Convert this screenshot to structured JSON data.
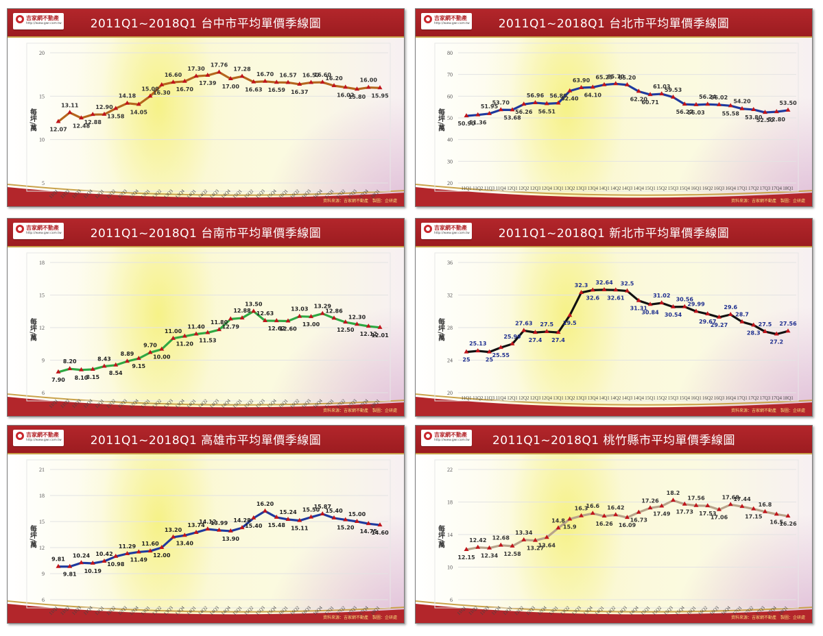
{
  "logo": {
    "name": "吉家網不動產",
    "url": "http://www.gwr.com.tw",
    "sub": "GWR"
  },
  "footer": "資料來源：吉家網不動產　製圖：企研處",
  "quarters": [
    "11Q1",
    "11Q2",
    "11Q3",
    "11Q4",
    "12Q1",
    "12Q2",
    "12Q3",
    "12Q4",
    "13Q1",
    "13Q2",
    "13Q3",
    "13Q4",
    "14Q1",
    "14Q2",
    "14Q3",
    "14Q4",
    "15Q1",
    "15Q2",
    "15Q3",
    "15Q4",
    "16Q1",
    "16Q2",
    "16Q3",
    "16Q4",
    "17Q1",
    "17Q2",
    "17Q3",
    "17Q4",
    "18Q1"
  ],
  "chart_data": [
    {
      "type": "line",
      "title": "2011Q1~2018Q1  台中市平均單價季線圖",
      "xlabel": "",
      "ylabel": "每坪/萬",
      "ylim": [
        5,
        20
      ],
      "yticks": [
        5,
        10,
        15,
        20
      ],
      "grid": true,
      "line_color": "#b5651d",
      "label_color": "#333333",
      "xtick_rotated": true,
      "series": [
        {
          "name": "台中市",
          "values": [
            12.07,
            13.11,
            12.48,
            12.88,
            12.9,
            13.58,
            14.18,
            14.05,
            15.0,
            16.3,
            16.6,
            16.7,
            17.3,
            17.39,
            17.76,
            17.0,
            17.28,
            16.63,
            16.7,
            16.59,
            16.57,
            16.37,
            16.57,
            16.6,
            16.2,
            16.02,
            15.8,
            16.0,
            15.95
          ]
        }
      ]
    },
    {
      "type": "line",
      "title": "2011Q1~2018Q1  台北市平均單價季線圖",
      "xlabel": "",
      "ylabel": "每坪/萬",
      "ylim": [
        20,
        80
      ],
      "yticks": [
        20,
        30,
        40,
        50,
        60,
        70,
        80
      ],
      "grid": true,
      "line_color": "#1f3a9e",
      "label_color": "#333333",
      "xtick_rotated": false,
      "series": [
        {
          "name": "台北市",
          "values": [
            50.9,
            51.36,
            51.95,
            53.7,
            53.68,
            56.26,
            56.96,
            56.51,
            56.8,
            62.4,
            63.9,
            64.1,
            65.25,
            65.7,
            65.2,
            62.2,
            60.71,
            61.03,
            59.53,
            56.27,
            56.03,
            56.24,
            56.02,
            55.58,
            54.2,
            53.8,
            52.5,
            52.8,
            53.5
          ]
        }
      ]
    },
    {
      "type": "line",
      "title": "2011Q1~2018Q1  台南市平均單價季線圖",
      "xlabel": "",
      "ylabel": "每坪/萬",
      "ylim": [
        6,
        18
      ],
      "yticks": [
        6,
        9,
        12,
        15,
        18
      ],
      "grid": true,
      "line_color": "#2fa843",
      "label_color": "#222222",
      "xtick_rotated": true,
      "series": [
        {
          "name": "台南市",
          "values": [
            7.9,
            8.2,
            8.1,
            8.15,
            8.43,
            8.54,
            8.89,
            9.15,
            9.7,
            10.0,
            11.0,
            11.2,
            11.4,
            11.53,
            11.8,
            12.79,
            12.88,
            13.5,
            12.63,
            12.62,
            12.6,
            13.03,
            13.0,
            13.29,
            12.86,
            12.5,
            12.3,
            12.12,
            12.01
          ]
        }
      ]
    },
    {
      "type": "line",
      "title": "2011Q1~2018Q1  新北市平均單價季線圖",
      "xlabel": "",
      "ylabel": "每坪/萬",
      "ylim": [
        20,
        36
      ],
      "yticks": [
        20,
        24,
        28,
        32,
        36
      ],
      "grid": true,
      "line_color": "#111111",
      "label_color": "#1f2f8f",
      "xtick_rotated": false,
      "series": [
        {
          "name": "新北市",
          "values": [
            25,
            25.13,
            25,
            25.55,
            25.99,
            27.63,
            27.4,
            27.5,
            27.4,
            29.5,
            32.3,
            32.6,
            32.64,
            32.61,
            32.5,
            31.31,
            30.84,
            31.02,
            30.54,
            30.56,
            29.99,
            29.67,
            29.27,
            29.6,
            28.7,
            28.3,
            27.5,
            27.2,
            27.56
          ]
        }
      ]
    },
    {
      "type": "line",
      "title": "2011Q1~2018Q1  高雄市平均單價季線圖",
      "xlabel": "",
      "ylabel": "每坪/萬",
      "ylim": [
        6,
        21
      ],
      "yticks": [
        6,
        9,
        12,
        15,
        18,
        21
      ],
      "grid": true,
      "line_color": "#1f3a9e",
      "label_color": "#222222",
      "xtick_rotated": true,
      "series": [
        {
          "name": "高雄市",
          "values": [
            9.81,
            9.81,
            10.24,
            10.19,
            10.42,
            10.98,
            11.29,
            11.49,
            11.6,
            12.0,
            13.2,
            13.4,
            13.74,
            14.12,
            13.99,
            13.9,
            14.28,
            15.4,
            16.2,
            15.48,
            15.24,
            15.11,
            15.5,
            15.87,
            15.4,
            15.2,
            15.0,
            14.75,
            14.6
          ]
        }
      ]
    },
    {
      "type": "line",
      "title": "2011Q1~2018Q1  桃竹縣市平均單價季線圖",
      "xlabel": "",
      "ylabel": "每坪/萬",
      "ylim": [
        6,
        22
      ],
      "yticks": [
        6,
        10,
        14,
        18,
        22
      ],
      "grid": true,
      "line_color": "#b8a38a",
      "label_color": "#333333",
      "xtick_rotated": true,
      "series": [
        {
          "name": "桃竹縣市",
          "values": [
            12.15,
            12.42,
            12.34,
            12.68,
            12.58,
            13.34,
            13.27,
            13.64,
            14.8,
            15.9,
            16.3,
            16.6,
            16.26,
            16.42,
            16.09,
            16.73,
            17.26,
            17.49,
            18.2,
            17.73,
            17.56,
            17.53,
            17.06,
            17.68,
            17.44,
            17.15,
            16.8,
            16.5,
            16.26
          ]
        }
      ]
    }
  ]
}
